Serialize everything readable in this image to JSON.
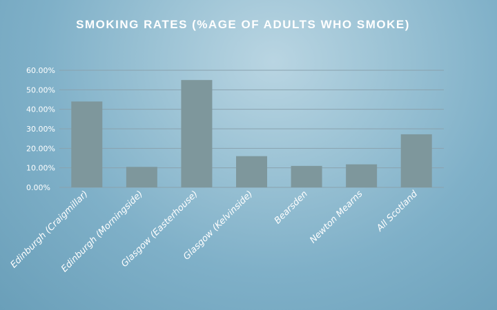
{
  "chart_data": {
    "type": "bar",
    "title": "SMOKING RATES (%AGE OF ADULTS WHO SMOKE)",
    "categories": [
      "Edinburgh (Craigmillar)",
      "Edinburgh (Morningside)",
      "Glasgow (Easterhouse)",
      "Glasgow (Kelvinside)",
      "Bearsden",
      "Newton Mearns",
      "All Scotland"
    ],
    "values": [
      44,
      10.5,
      55,
      16,
      11,
      11.8,
      27.2
    ],
    "ylim": [
      0,
      60
    ],
    "yticks": [
      "0.00%",
      "10.00%",
      "20.00%",
      "30.00%",
      "40.00%",
      "50.00%",
      "60.00%"
    ],
    "grid": true,
    "colors": {
      "bar": "#7e979c",
      "grid": "#8aa2ae",
      "text": "#ffffff"
    }
  }
}
